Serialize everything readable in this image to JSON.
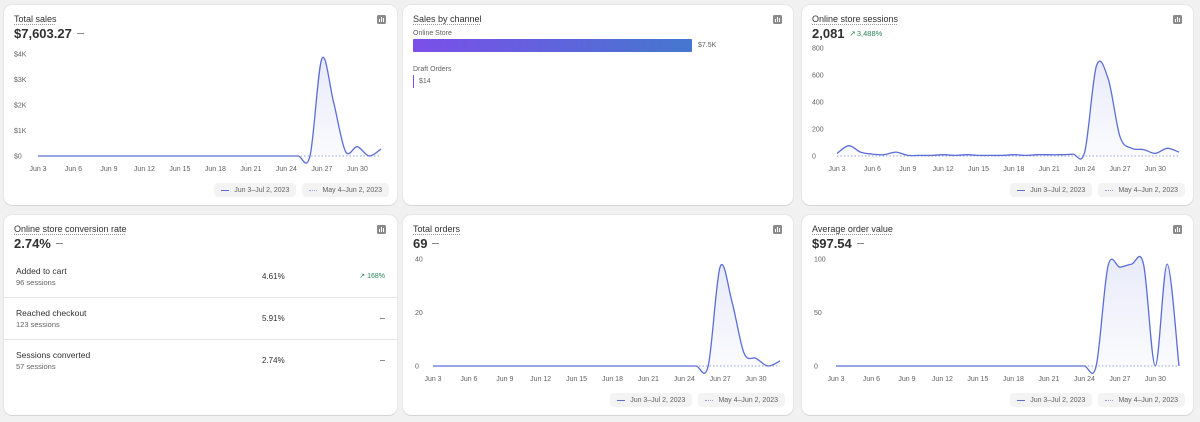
{
  "total_sales": {
    "title": "Total sales",
    "value": "$7,603.27",
    "y_ticks": [
      "$4K",
      "$3K",
      "$2K",
      "$1K",
      "$0"
    ],
    "x_ticks": [
      "Jun 3",
      "Jun 6",
      "Jun 9",
      "Jun 12",
      "Jun 15",
      "Jun 18",
      "Jun 21",
      "Jun 24",
      "Jun 27",
      "Jun 30"
    ],
    "legend_current": "Jun 3–Jul 2, 2023",
    "legend_previous": "May 4–Jun 2, 2023"
  },
  "sales_by_channel": {
    "title": "Sales by channel",
    "channels": [
      {
        "name": "Online Store",
        "value_label": "$7.5K",
        "value": 7500
      },
      {
        "name": "Draft Orders",
        "value_label": "$14",
        "value": 14
      }
    ]
  },
  "online_store_sessions": {
    "title": "Online store sessions",
    "value": "2,081",
    "delta": "3,488%",
    "y_ticks": [
      "800",
      "600",
      "400",
      "200",
      "0"
    ],
    "x_ticks": [
      "Jun 3",
      "Jun 6",
      "Jun 9",
      "Jun 12",
      "Jun 15",
      "Jun 18",
      "Jun 21",
      "Jun 24",
      "Jun 27",
      "Jun 30"
    ],
    "legend_current": "Jun 3–Jul 2, 2023",
    "legend_previous": "May 4–Jun 2, 2023"
  },
  "conversion_rate": {
    "title": "Online store conversion rate",
    "value": "2.74%",
    "rows": [
      {
        "name": "Added to cart",
        "sessions": "96 sessions",
        "pct": "4.61%",
        "delta": "168%"
      },
      {
        "name": "Reached checkout",
        "sessions": "123 sessions",
        "pct": "5.91%",
        "delta": ""
      },
      {
        "name": "Sessions converted",
        "sessions": "57 sessions",
        "pct": "2.74%",
        "delta": ""
      }
    ]
  },
  "total_orders": {
    "title": "Total orders",
    "value": "69",
    "y_ticks": [
      "40",
      "20",
      "0"
    ],
    "x_ticks": [
      "Jun 3",
      "Jun 6",
      "Jun 9",
      "Jun 12",
      "Jun 15",
      "Jun 18",
      "Jun 21",
      "Jun 24",
      "Jun 27",
      "Jun 30"
    ],
    "legend_current": "Jun 3–Jul 2, 2023",
    "legend_previous": "May 4–Jun 2, 2023"
  },
  "average_order_value": {
    "title": "Average order value",
    "value": "$97.54",
    "y_ticks": [
      "100",
      "50",
      "0"
    ],
    "x_ticks": [
      "Jun 3",
      "Jun 6",
      "Jun 9",
      "Jun 12",
      "Jun 15",
      "Jun 18",
      "Jun 21",
      "Jun 24",
      "Jun 27",
      "Jun 30"
    ],
    "legend_current": "Jun 3–Jul 2, 2023",
    "legend_previous": "May 4–Jun 2, 2023"
  },
  "colors": {
    "line": "#5b6dd8",
    "bar_start": "#7b4fe9",
    "bar_end": "#4577cf",
    "positive": "#29845a"
  },
  "chart_data": [
    {
      "type": "line",
      "title": "Total sales",
      "ylim": [
        0,
        4400
      ],
      "x": [
        "Jun 3",
        "Jun 4",
        "Jun 5",
        "Jun 6",
        "Jun 7",
        "Jun 8",
        "Jun 9",
        "Jun 10",
        "Jun 11",
        "Jun 12",
        "Jun 13",
        "Jun 14",
        "Jun 15",
        "Jun 16",
        "Jun 17",
        "Jun 18",
        "Jun 19",
        "Jun 20",
        "Jun 21",
        "Jun 22",
        "Jun 23",
        "Jun 24",
        "Jun 25",
        "Jun 26",
        "Jun 27",
        "Jun 28",
        "Jun 29",
        "Jun 30",
        "Jul 1",
        "Jul 2"
      ],
      "series": [
        {
          "name": "Jun 3–Jul 2, 2023",
          "values": [
            0,
            0,
            0,
            0,
            0,
            0,
            0,
            0,
            0,
            0,
            0,
            0,
            0,
            0,
            0,
            0,
            0,
            0,
            0,
            0,
            0,
            0,
            0,
            3,
            4200,
            2300,
            200,
            400,
            0,
            300
          ]
        },
        {
          "name": "May 4–Jun 2, 2023",
          "values": [
            0,
            0,
            0,
            0,
            0,
            0,
            0,
            0,
            0,
            0,
            0,
            0,
            0,
            0,
            0,
            0,
            0,
            0,
            0,
            0,
            0,
            0,
            0,
            0,
            0,
            0,
            0,
            0,
            0,
            0
          ]
        }
      ]
    },
    {
      "type": "bar",
      "title": "Sales by channel",
      "categories": [
        "Online Store",
        "Draft Orders"
      ],
      "values": [
        7500,
        14
      ]
    },
    {
      "type": "line",
      "title": "Online store sessions",
      "ylim": [
        0,
        840
      ],
      "x": [
        "Jun 3",
        "Jun 4",
        "Jun 5",
        "Jun 6",
        "Jun 7",
        "Jun 8",
        "Jun 9",
        "Jun 10",
        "Jun 11",
        "Jun 12",
        "Jun 13",
        "Jun 14",
        "Jun 15",
        "Jun 16",
        "Jun 17",
        "Jun 18",
        "Jun 19",
        "Jun 20",
        "Jun 21",
        "Jun 22",
        "Jun 23",
        "Jun 24",
        "Jun 25",
        "Jun 26",
        "Jun 27",
        "Jun 28",
        "Jun 29",
        "Jun 30",
        "Jul 1",
        "Jul 2"
      ],
      "series": [
        {
          "name": "Jun 3–Jul 2, 2023",
          "values": [
            20,
            80,
            30,
            15,
            10,
            30,
            5,
            5,
            5,
            10,
            5,
            10,
            5,
            5,
            5,
            10,
            5,
            10,
            10,
            10,
            15,
            30,
            700,
            600,
            150,
            60,
            50,
            20,
            60,
            30
          ]
        },
        {
          "name": "May 4–Jun 2, 2023",
          "values": [
            0,
            0,
            0,
            0,
            0,
            0,
            0,
            0,
            0,
            0,
            0,
            0,
            0,
            0,
            0,
            0,
            0,
            0,
            0,
            0,
            0,
            0,
            0,
            0,
            0,
            0,
            0,
            0,
            0,
            0
          ]
        }
      ]
    },
    {
      "type": "line",
      "title": "Total orders",
      "ylim": [
        0,
        42
      ],
      "x": [
        "Jun 3",
        "Jun 4",
        "Jun 5",
        "Jun 6",
        "Jun 7",
        "Jun 8",
        "Jun 9",
        "Jun 10",
        "Jun 11",
        "Jun 12",
        "Jun 13",
        "Jun 14",
        "Jun 15",
        "Jun 16",
        "Jun 17",
        "Jun 18",
        "Jun 19",
        "Jun 20",
        "Jun 21",
        "Jun 22",
        "Jun 23",
        "Jun 24",
        "Jun 25",
        "Jun 26",
        "Jun 27",
        "Jun 28",
        "Jun 29",
        "Jun 30",
        "Jul 1",
        "Jul 2"
      ],
      "series": [
        {
          "name": "Jun 3–Jul 2, 2023",
          "values": [
            0,
            0,
            0,
            0,
            0,
            0,
            0,
            0,
            0,
            0,
            0,
            0,
            0,
            0,
            0,
            0,
            0,
            0,
            0,
            0,
            0,
            0,
            0,
            0,
            39,
            25,
            5,
            3,
            0,
            2
          ]
        },
        {
          "name": "May 4–Jun 2, 2023",
          "values": [
            0,
            0,
            0,
            0,
            0,
            0,
            0,
            0,
            0,
            0,
            0,
            0,
            0,
            0,
            0,
            0,
            0,
            0,
            0,
            0,
            0,
            0,
            0,
            0,
            0,
            0,
            0,
            0,
            0,
            0
          ]
        }
      ]
    },
    {
      "type": "line",
      "title": "Average order value",
      "ylim": [
        0,
        105
      ],
      "x": [
        "Jun 3",
        "Jun 4",
        "Jun 5",
        "Jun 6",
        "Jun 7",
        "Jun 8",
        "Jun 9",
        "Jun 10",
        "Jun 11",
        "Jun 12",
        "Jun 13",
        "Jun 14",
        "Jun 15",
        "Jun 16",
        "Jun 17",
        "Jun 18",
        "Jun 19",
        "Jun 20",
        "Jun 21",
        "Jun 22",
        "Jun 23",
        "Jun 24",
        "Jun 25",
        "Jun 26",
        "Jun 27",
        "Jun 28",
        "Jun 29",
        "Jun 30",
        "Jul 1",
        "Jul 2"
      ],
      "series": [
        {
          "name": "Jun 3–Jul 2, 2023",
          "values": [
            0,
            0,
            0,
            0,
            0,
            0,
            0,
            0,
            0,
            0,
            0,
            0,
            0,
            0,
            0,
            0,
            0,
            0,
            0,
            0,
            0,
            0,
            0,
            98,
            97,
            100,
            100,
            0,
            100,
            0
          ]
        },
        {
          "name": "May 4–Jun 2, 2023",
          "values": [
            0,
            0,
            0,
            0,
            0,
            0,
            0,
            0,
            0,
            0,
            0,
            0,
            0,
            0,
            0,
            0,
            0,
            0,
            0,
            0,
            0,
            0,
            0,
            0,
            0,
            0,
            0,
            0,
            0,
            0
          ]
        }
      ]
    }
  ]
}
